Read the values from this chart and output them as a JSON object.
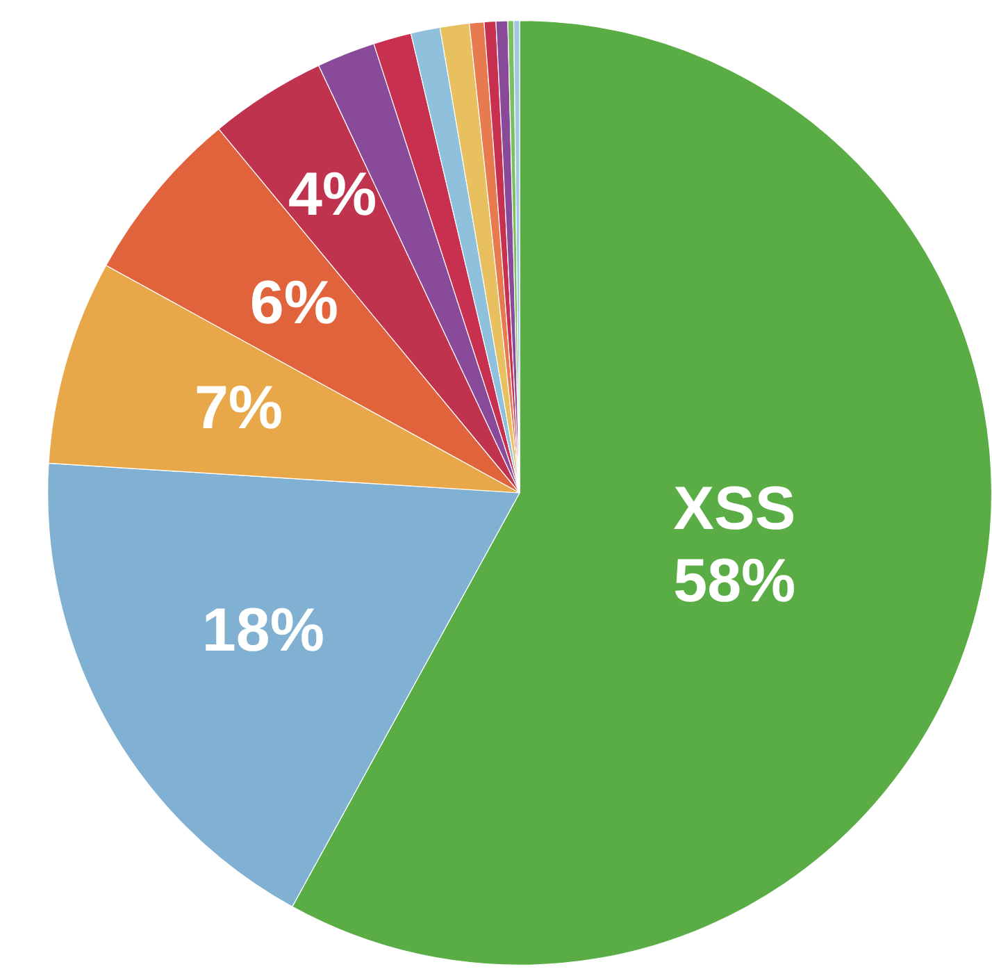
{
  "chart_data": {
    "type": "pie",
    "categories": [
      "XSS",
      null,
      null,
      null,
      null,
      null,
      null,
      null,
      null,
      null,
      null,
      null,
      null,
      null
    ],
    "values": [
      58,
      18,
      7,
      6,
      4,
      2,
      1.3,
      1,
      1,
      0.5,
      0.4,
      0.4,
      0.2,
      0.2
    ],
    "colors": [
      "#5aad45",
      "#80b1d2",
      "#e8a84a",
      "#e0633c",
      "#c0334f",
      "#8a4a9a",
      "#c8304f",
      "#8fc0dc",
      "#e8c060",
      "#e87a50",
      "#c83050",
      "#8a4a9a",
      "#7ac060",
      "#a0c8e0"
    ],
    "value_labels": [
      "58%",
      "18%",
      "7%",
      "6%",
      "4%",
      null,
      null,
      null,
      null,
      null,
      null,
      null,
      null,
      null
    ],
    "legend": false
  }
}
